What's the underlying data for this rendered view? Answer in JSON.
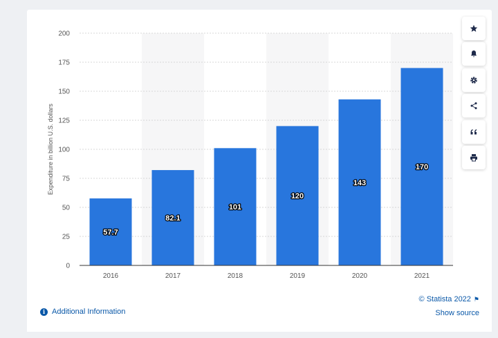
{
  "chart_data": {
    "type": "bar",
    "categories": [
      "2016",
      "2017",
      "2018",
      "2019",
      "2020",
      "2021"
    ],
    "values": [
      57.7,
      82.1,
      101,
      120,
      143,
      170
    ],
    "value_labels": [
      "57.7",
      "82.1",
      "101",
      "120",
      "143",
      "170"
    ],
    "ylabel": "Expenditure in billion U.S. dollars",
    "xlabel": "",
    "ylim": [
      0,
      200
    ],
    "yticks": [
      "0",
      "25",
      "50",
      "75",
      "100",
      "125",
      "150",
      "175",
      "200"
    ],
    "bar_color": "#2876dd",
    "grid": true,
    "legend": "none"
  },
  "colors": {
    "accent": "#0a58a8",
    "band": "#f6f6f7",
    "grid": "#d7d7d7",
    "axis_text": "#555555"
  },
  "toolbar": [
    {
      "name": "favorite",
      "icon": "star-icon"
    },
    {
      "name": "notification",
      "icon": "bell-icon"
    },
    {
      "name": "settings",
      "icon": "gear-icon"
    },
    {
      "name": "share",
      "icon": "share-icon"
    },
    {
      "name": "cite",
      "icon": "quote-icon"
    },
    {
      "name": "print",
      "icon": "print-icon"
    }
  ],
  "footer": {
    "additional_info": "Additional Information",
    "info_icon_glyph": "i",
    "copyright": "© Statista 2022",
    "show_source": "Show source"
  }
}
